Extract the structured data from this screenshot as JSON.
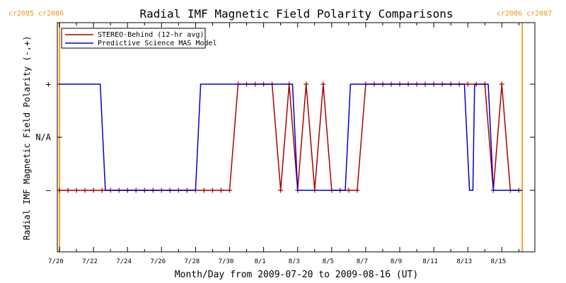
{
  "chart_data": {
    "type": "line",
    "title": "Radial IMF Magnetic Field Polarity Comparisons",
    "xlabel": "Month/Day from 2009-07-20 to 2009-08-16 (UT)",
    "ylabel": "Radial IMF Magnetic Field Polarity (-,+)",
    "x_ticks": [
      "7/20",
      "7/22",
      "7/24",
      "7/26",
      "7/28",
      "7/30",
      "8/1",
      "8/3",
      "8/5",
      "8/7",
      "8/9",
      "8/11",
      "8/13",
      "8/15"
    ],
    "x_tick_days": [
      0,
      2,
      4,
      6,
      8,
      10,
      12,
      14,
      16,
      18,
      20,
      22,
      24,
      26
    ],
    "xlim": [
      0,
      27.5
    ],
    "y_ticks": [
      {
        "label": "+",
        "value": 1
      },
      {
        "label": "N/A",
        "value": 0
      },
      {
        "label": "–",
        "value": -1
      }
    ],
    "ylim": [
      -2,
      2
    ],
    "carrington_left": "cr2085 cr2086",
    "carrington_right": "cr2086 cr2087",
    "carrington_boundaries_days": [
      0,
      27.2
    ],
    "series": [
      {
        "name": "STEREO-Behind (12-hr avg)",
        "color": "#aa0000",
        "marker": "+",
        "days": [
          0.0,
          0.5,
          1.0,
          1.5,
          2.0,
          2.5,
          3.0,
          3.5,
          4.0,
          4.5,
          5.0,
          5.5,
          6.0,
          6.5,
          7.0,
          7.5,
          8.0,
          8.5,
          9.0,
          9.5,
          10.0,
          10.5,
          11.0,
          11.5,
          12.0,
          12.5,
          13.0,
          13.5,
          14.0,
          14.5,
          15.0,
          15.5,
          16.0,
          16.5,
          17.0,
          17.5,
          18.0,
          18.5,
          19.0,
          19.5,
          20.0,
          20.5,
          21.0,
          21.5,
          22.0,
          22.5,
          23.0,
          23.5,
          24.0,
          24.5,
          25.0,
          25.5,
          26.0,
          26.5,
          27.0
        ],
        "values": [
          -1,
          -1,
          -1,
          -1,
          -1,
          -1,
          -1,
          -1,
          -1,
          -1,
          -1,
          -1,
          -1,
          -1,
          -1,
          -1,
          -1,
          -1,
          -1,
          -1,
          -1,
          1,
          1,
          1,
          1,
          1,
          -1,
          1,
          -1,
          1,
          -1,
          1,
          -1,
          -1,
          -1,
          -1,
          1,
          1,
          1,
          1,
          1,
          1,
          1,
          1,
          1,
          1,
          1,
          1,
          1,
          1,
          1,
          -1,
          1,
          -1,
          -1
        ]
      },
      {
        "name": "Predictive Science MAS Model",
        "color": "#0000cc",
        "days": [
          0.0,
          2.4,
          2.7,
          8.0,
          8.3,
          13.7,
          14.0,
          16.8,
          17.1,
          23.8,
          24.1,
          24.3,
          24.4,
          25.2,
          25.5,
          27.2
        ],
        "values": [
          1,
          1,
          -1,
          -1,
          1,
          1,
          -1,
          -1,
          1,
          1,
          -1,
          -1,
          1,
          1,
          -1,
          -1
        ]
      }
    ]
  }
}
